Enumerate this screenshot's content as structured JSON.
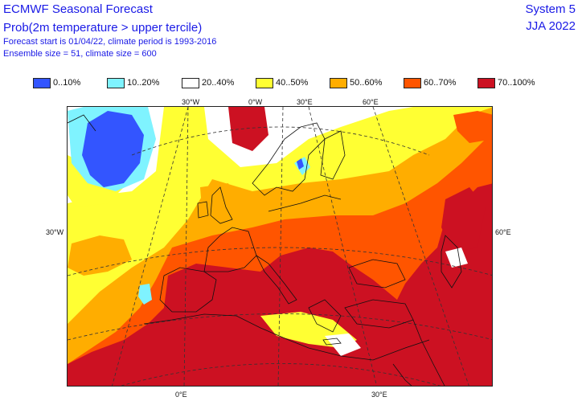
{
  "header": {
    "title": "ECMWF Seasonal Forecast",
    "subtitle": "Prob(2m temperature > upper tercile)",
    "forecast_info": "Forecast start is 01/04/22, climate period is 1993-2016",
    "ensemble_info": "Ensemble size = 51, climate size = 600",
    "system": "System 5",
    "season": "JJA 2022"
  },
  "legend": [
    {
      "label": "0..10%",
      "color": "#3355ff"
    },
    {
      "label": "10..20%",
      "color": "#7ff3ff"
    },
    {
      "label": "20..40%",
      "color": "#ffffff"
    },
    {
      "label": "40..50%",
      "color": "#ffff33"
    },
    {
      "label": "50..60%",
      "color": "#ffad00"
    },
    {
      "label": "60..70%",
      "color": "#ff5500"
    },
    {
      "label": "70..100%",
      "color": "#cc1122"
    }
  ],
  "ticks": {
    "top": [
      "30°W",
      "0°W",
      "30°E",
      "60°E"
    ],
    "left": "30°W",
    "right": "60°E",
    "bottom": [
      "0°E",
      "30°E"
    ]
  }
}
